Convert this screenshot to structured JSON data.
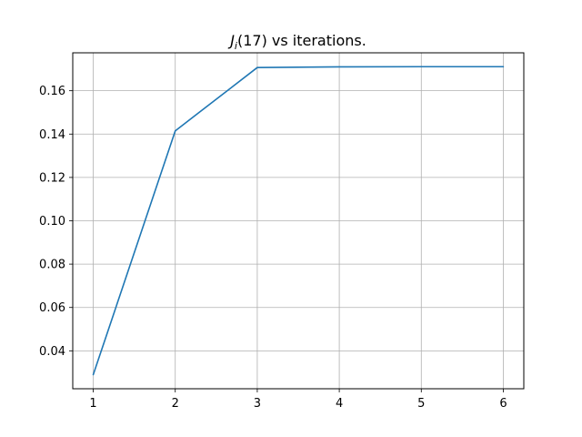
{
  "chart_data": {
    "type": "line",
    "title": {
      "symbol": "J",
      "subscript": "i",
      "rest": "(17) vs iterations."
    },
    "xlabel": "",
    "ylabel": "",
    "xlim": [
      0.75,
      6.25
    ],
    "ylim": [
      0.0225,
      0.1775
    ],
    "x_ticks": [
      1,
      2,
      3,
      4,
      5,
      6
    ],
    "x_tick_labels": [
      "1",
      "2",
      "3",
      "4",
      "5",
      "6"
    ],
    "y_ticks": [
      0.04,
      0.06,
      0.08,
      0.1,
      0.12,
      0.14,
      0.16
    ],
    "y_tick_labels": [
      "0.04",
      "0.06",
      "0.08",
      "0.10",
      "0.12",
      "0.14",
      "0.16"
    ],
    "grid": true,
    "series": [
      {
        "color": "#1f77b4",
        "x": [
          1,
          2,
          3,
          4,
          5,
          6
        ],
        "y": [
          0.029,
          0.1415,
          0.1707,
          0.171,
          0.1711,
          0.1711
        ]
      }
    ]
  }
}
